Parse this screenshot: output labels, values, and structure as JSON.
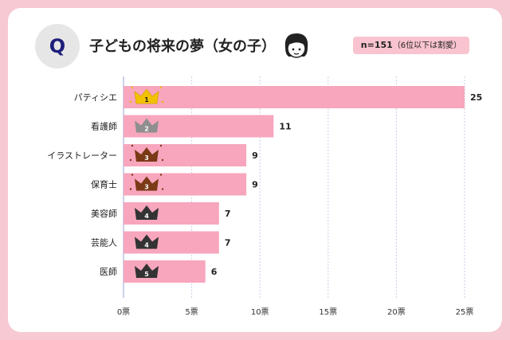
{
  "header": {
    "q_label": "Q",
    "title": "子どもの将来の夢（女の子）",
    "note_n": "n=151",
    "note_rest": "（6位以下は割愛）"
  },
  "chart_data": {
    "type": "bar",
    "orientation": "horizontal",
    "categories": [
      "パティシエ",
      "看護師",
      "イラストレーター",
      "保育士",
      "美容師",
      "芸能人",
      "医師"
    ],
    "values": [
      25,
      11,
      9,
      9,
      7,
      7,
      6
    ],
    "ranks": [
      "1",
      "2",
      "3",
      "3",
      "4",
      "4",
      "5"
    ],
    "xlim": [
      0,
      25
    ],
    "x_ticks": [
      0,
      5,
      10,
      15,
      20,
      25
    ],
    "x_tick_labels": [
      "0票",
      "5票",
      "10票",
      "15票",
      "20票",
      "25票"
    ],
    "grid": true,
    "bar_color": "#f7a6bd",
    "grid_color": "#c9cde6",
    "crown_colors": {
      "1": "#f2c200",
      "2": "#8f8f8f",
      "3": "#7a3a16",
      "4": "#333333",
      "5": "#333333"
    }
  }
}
